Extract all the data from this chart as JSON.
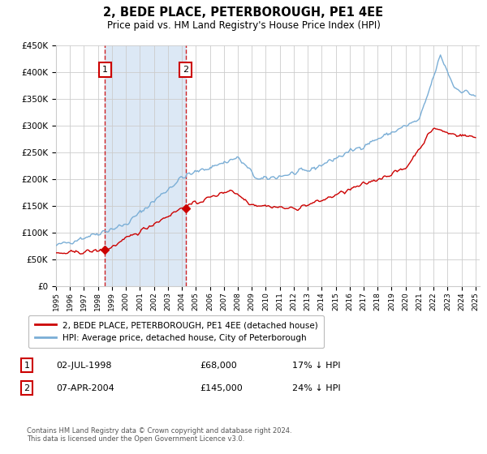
{
  "title": "2, BEDE PLACE, PETERBOROUGH, PE1 4EE",
  "subtitle": "Price paid vs. HM Land Registry's House Price Index (HPI)",
  "line1_label": "2, BEDE PLACE, PETERBOROUGH, PE1 4EE (detached house)",
  "line2_label": "HPI: Average price, detached house, City of Peterborough",
  "line1_color": "#cc0000",
  "line2_color": "#7aaed6",
  "purchase1_x": 1998.5,
  "purchase1_price": 68000,
  "purchase1_label": "1",
  "purchase1_text": "02-JUL-1998",
  "purchase1_amount": "£68,000",
  "purchase1_hpi": "17% ↓ HPI",
  "purchase2_x": 2004.27,
  "purchase2_price": 145000,
  "purchase2_label": "2",
  "purchase2_text": "07-APR-2004",
  "purchase2_amount": "£145,000",
  "purchase2_hpi": "24% ↓ HPI",
  "footnote": "Contains HM Land Registry data © Crown copyright and database right 2024.\nThis data is licensed under the Open Government Licence v3.0.",
  "background_color": "#ffffff",
  "grid_color": "#cccccc",
  "shading_color": "#dce8f5",
  "vline_color": "#cc0000",
  "box_edge_color": "#cc0000",
  "ylim": [
    0,
    450000
  ],
  "xlim": [
    1995,
    2025.3
  ]
}
